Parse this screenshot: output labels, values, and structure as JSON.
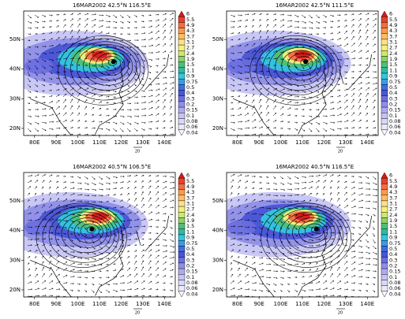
{
  "panels": [
    {
      "title": "16MAR2002  42.5°N 116.5°E"
    },
    {
      "title": "16MAR2002  42.5°N 111.5°E"
    },
    {
      "title": "16MAR2002  40.5°N 106.5°E"
    },
    {
      "title": "16MAR2002  40.5°N 116.5°E"
    }
  ],
  "y_labels": [
    "50N",
    "40N",
    "30N",
    "20N"
  ],
  "x_labels": [
    "80E",
    "90E",
    "100E",
    "110E",
    "120E",
    "130E",
    "140E"
  ],
  "reference_vector": "20",
  "colorbar_labels": [
    "6",
    "5.5",
    "4.9",
    "4.3",
    "3.7",
    "3.1",
    "2.7",
    "2.4",
    "1.9",
    "1.5",
    "1.1",
    "0.9",
    "0.75",
    "0.5",
    "0.4",
    "0.3",
    "0.2",
    "0.15",
    "0.1",
    "0.08",
    "0.06",
    "0.04"
  ]
}
